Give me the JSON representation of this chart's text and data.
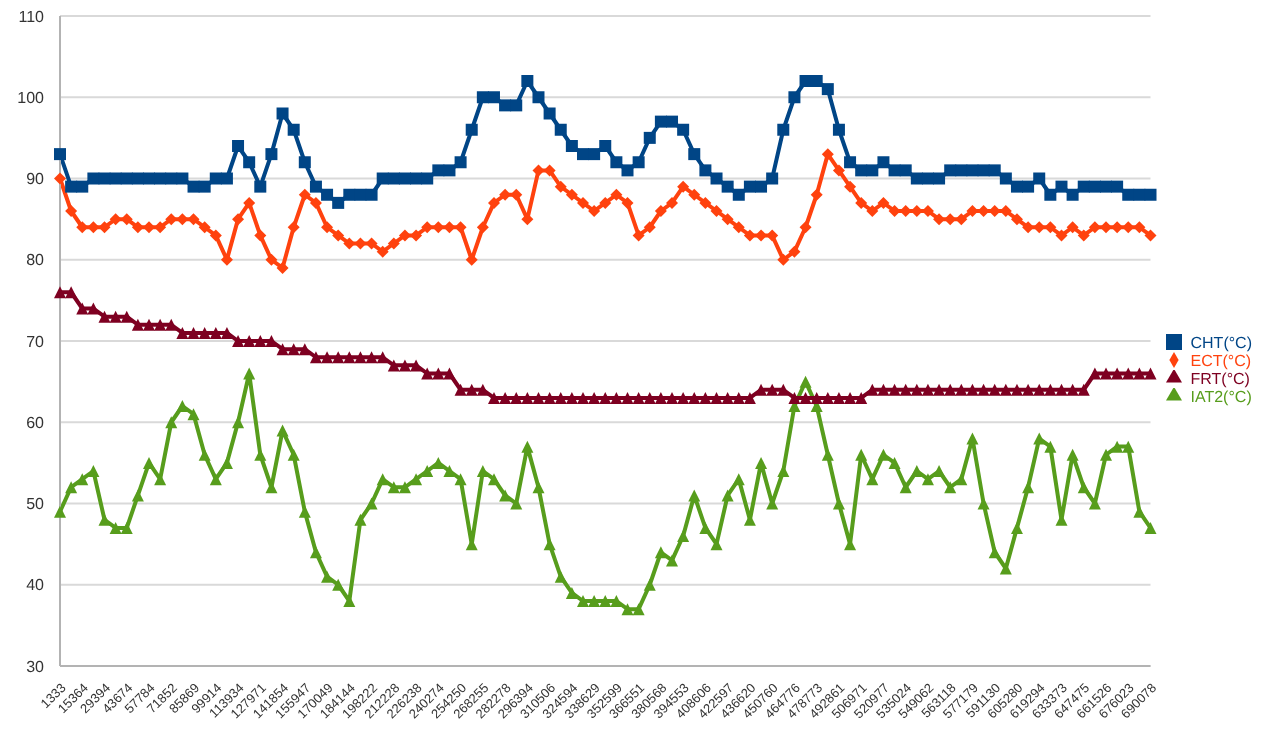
{
  "chart_data": {
    "type": "line",
    "categories": [
      "1333",
      null,
      "15364",
      null,
      "29394",
      null,
      "43674",
      null,
      "57784",
      null,
      "71852",
      null,
      "85869",
      null,
      "99914",
      null,
      "113934",
      null,
      "127971",
      null,
      "141854",
      null,
      "155947",
      null,
      "170049",
      null,
      "184144",
      null,
      "198222",
      null,
      "212228",
      null,
      "226238",
      null,
      "240274",
      null,
      "254250",
      null,
      "268255",
      null,
      "282278",
      null,
      "296394",
      null,
      "310506",
      null,
      "324594",
      null,
      "338629",
      null,
      "352599",
      null,
      "366551",
      null,
      "380568",
      null,
      "394553",
      null,
      "408606",
      null,
      "422597",
      null,
      "436620",
      null,
      "450760",
      null,
      "464776",
      null,
      "478773",
      null,
      "492861",
      null,
      "506971",
      null,
      "520977",
      null,
      "535024",
      null,
      "549062",
      null,
      "563118",
      null,
      "577179",
      null,
      "591130",
      null,
      "605280",
      null,
      "619294",
      null,
      "633373",
      null,
      "647475",
      null,
      "661526",
      null,
      "676023",
      null,
      "690078"
    ],
    "series": [
      {
        "name": "CHT(°C)",
        "color": "#004586",
        "marker": "square",
        "values": [
          93,
          89,
          89,
          90,
          90,
          90,
          90,
          90,
          90,
          90,
          90,
          90,
          89,
          89,
          90,
          90,
          94,
          92,
          89,
          93,
          98,
          96,
          92,
          89,
          88,
          87,
          88,
          88,
          88,
          90,
          90,
          90,
          90,
          90,
          91,
          91,
          92,
          96,
          100,
          100,
          99,
          99,
          102,
          100,
          98,
          96,
          94,
          93,
          93,
          94,
          92,
          91,
          92,
          95,
          97,
          97,
          96,
          93,
          91,
          90,
          89,
          88,
          89,
          89,
          90,
          96,
          100,
          102,
          102,
          101,
          96,
          92,
          91,
          91,
          92,
          91,
          91,
          90,
          90,
          90,
          91,
          91,
          91,
          91,
          91,
          90,
          89,
          89,
          90,
          88,
          89,
          88,
          89,
          89,
          89,
          89,
          88,
          88,
          88
        ]
      },
      {
        "name": "ECT(°C)",
        "color": "#ff420e",
        "marker": "diamond",
        "values": [
          90,
          86,
          84,
          84,
          84,
          85,
          85,
          84,
          84,
          84,
          85,
          85,
          85,
          84,
          83,
          80,
          85,
          87,
          83,
          80,
          79,
          84,
          88,
          87,
          84,
          83,
          82,
          82,
          82,
          81,
          82,
          83,
          83,
          84,
          84,
          84,
          84,
          80,
          84,
          87,
          88,
          88,
          85,
          91,
          91,
          89,
          88,
          87,
          86,
          87,
          88,
          87,
          83,
          84,
          86,
          87,
          89,
          88,
          87,
          86,
          85,
          84,
          83,
          83,
          83,
          80,
          81,
          84,
          88,
          93,
          91,
          89,
          87,
          86,
          87,
          86,
          86,
          86,
          86,
          85,
          85,
          85,
          86,
          86,
          86,
          86,
          85,
          84,
          84,
          84,
          83,
          84,
          83,
          84,
          84,
          84,
          84,
          84,
          83
        ]
      },
      {
        "name": "IAT2(°C)",
        "color": "#579d1c",
        "marker": "triangle",
        "values": [
          49,
          52,
          53,
          54,
          48,
          47,
          47,
          51,
          55,
          53,
          60,
          62,
          61,
          56,
          53,
          55,
          60,
          66,
          56,
          52,
          59,
          56,
          49,
          44,
          41,
          40,
          38,
          48,
          50,
          53,
          52,
          52,
          53,
          54,
          55,
          54,
          53,
          45,
          54,
          53,
          51,
          50,
          57,
          52,
          45,
          41,
          39,
          38,
          38,
          38,
          38,
          37,
          37,
          40,
          44,
          43,
          46,
          51,
          47,
          45,
          51,
          53,
          48,
          55,
          50,
          54,
          62,
          65,
          62,
          56,
          50,
          45,
          56,
          53,
          56,
          55,
          52,
          54,
          53,
          54,
          52,
          53,
          58,
          50,
          44,
          42,
          47,
          52,
          58,
          57,
          48,
          56,
          52,
          50,
          56,
          57,
          57,
          49,
          47
        ]
      },
      {
        "name": "FRT(°C)",
        "color": "#7e0021",
        "marker": "triangle",
        "values": [
          76,
          76,
          74,
          74,
          73,
          73,
          73,
          72,
          72,
          72,
          72,
          71,
          71,
          71,
          71,
          71,
          70,
          70,
          70,
          70,
          69,
          69,
          69,
          68,
          68,
          68,
          68,
          68,
          68,
          68,
          67,
          67,
          67,
          66,
          66,
          66,
          64,
          64,
          64,
          63,
          63,
          63,
          63,
          63,
          63,
          63,
          63,
          63,
          63,
          63,
          63,
          63,
          63,
          63,
          63,
          63,
          63,
          63,
          63,
          63,
          63,
          63,
          63,
          64,
          64,
          64,
          63,
          63,
          63,
          63,
          63,
          63,
          63,
          64,
          64,
          64,
          64,
          64,
          64,
          64,
          64,
          64,
          64,
          64,
          64,
          64,
          64,
          64,
          64,
          64,
          64,
          64,
          64,
          66,
          66,
          66,
          66,
          66,
          66
        ]
      }
    ],
    "ylim": [
      30,
      110
    ],
    "yticks": [
      30,
      40,
      50,
      60,
      70,
      80,
      90,
      100,
      110
    ],
    "grid": "y",
    "legend": "right"
  }
}
